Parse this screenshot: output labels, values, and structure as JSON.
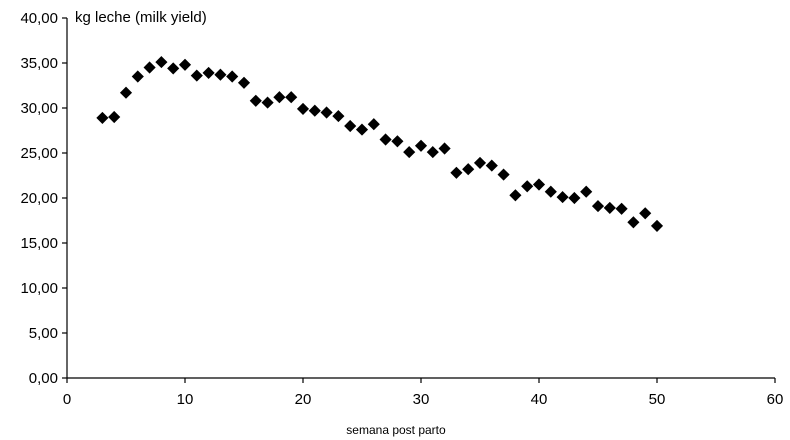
{
  "chart_data": {
    "type": "scatter",
    "title": "kg leche (milk yield)",
    "xlabel": "semana post parto",
    "ylabel": "",
    "xlim": [
      0,
      60
    ],
    "ylim": [
      0,
      40
    ],
    "x_ticks": [
      "0",
      "10",
      "20",
      "30",
      "40",
      "50",
      "60"
    ],
    "y_ticks": [
      "0,00",
      "5,00",
      "10,00",
      "15,00",
      "20,00",
      "25,00",
      "30,00",
      "35,00",
      "40,00"
    ],
    "grid": false,
    "marker": "diamond",
    "color": "#000000",
    "series": [
      {
        "x": [
          3,
          4,
          5,
          6,
          7,
          8,
          9,
          10,
          11,
          12,
          13,
          14,
          15,
          16,
          17,
          18,
          19,
          20,
          21,
          22,
          23,
          24,
          25,
          26,
          27,
          28,
          29,
          30,
          31,
          32,
          33,
          34,
          35,
          36,
          37,
          38,
          39,
          40,
          41,
          42,
          43,
          44,
          45,
          46,
          47,
          48,
          49,
          50
        ],
        "y": [
          28.9,
          29.0,
          31.7,
          33.5,
          34.5,
          35.1,
          34.4,
          34.8,
          33.6,
          33.9,
          33.7,
          33.5,
          32.8,
          30.8,
          30.6,
          31.2,
          31.2,
          29.9,
          29.7,
          29.5,
          29.1,
          28.0,
          27.6,
          28.2,
          26.5,
          26.3,
          25.1,
          25.8,
          25.1,
          25.5,
          22.8,
          23.2,
          23.9,
          23.6,
          22.6,
          20.3,
          21.3,
          21.5,
          20.7,
          20.1,
          20.0,
          20.7,
          19.1,
          18.9,
          18.8,
          17.3,
          18.3,
          16.9
        ]
      }
    ]
  }
}
